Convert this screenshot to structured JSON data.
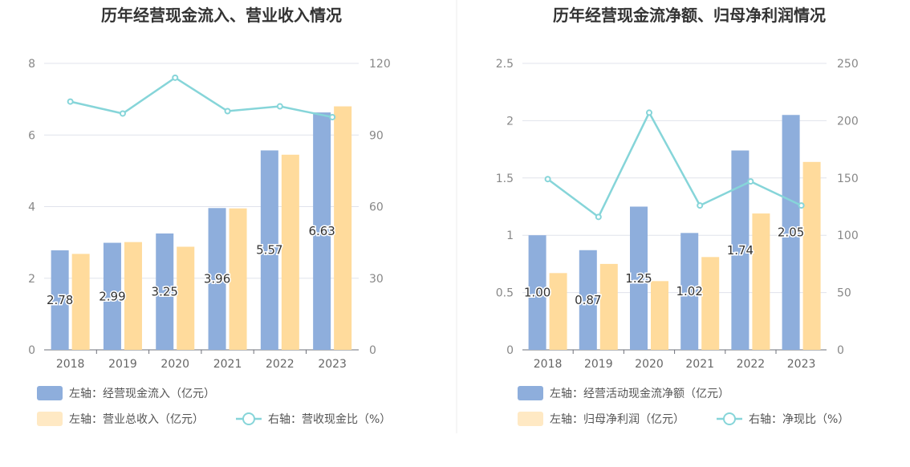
{
  "chart_data": [
    {
      "type": "bar",
      "title": "历年经营现金流入、营业收入情况",
      "categories": [
        "2018",
        "2019",
        "2020",
        "2021",
        "2022",
        "2023"
      ],
      "ylim_left": [
        0,
        8
      ],
      "yticks_left": [
        0,
        2,
        4,
        6,
        8
      ],
      "ylim_right": [
        0,
        120
      ],
      "yticks_right": [
        0,
        30,
        60,
        90,
        120
      ],
      "series": [
        {
          "name": "左轴：经营现金流入（亿元）",
          "type": "bar",
          "axis": "left",
          "color": "#8eaedc",
          "values": [
            2.78,
            2.99,
            3.25,
            3.96,
            5.57,
            6.63
          ],
          "labels": [
            "2.78",
            "2.99",
            "3.25",
            "3.96",
            "5.57",
            "6.63"
          ]
        },
        {
          "name": "左轴：营业总收入（亿元）",
          "type": "bar",
          "axis": "left",
          "color": "#ffdb9c",
          "values": [
            2.68,
            3.01,
            2.88,
            3.95,
            5.45,
            6.8
          ]
        },
        {
          "name": "右轴：营收现金比（%）",
          "type": "line",
          "axis": "right",
          "color": "#86d5d9",
          "values": [
            104,
            99,
            114,
            100,
            102,
            97.5
          ]
        }
      ],
      "grid": true,
      "legend_position": "bottom"
    },
    {
      "type": "bar",
      "title": "历年经营现金流净额、归母净利润情况",
      "categories": [
        "2018",
        "2019",
        "2020",
        "2021",
        "2022",
        "2023"
      ],
      "ylim_left": [
        0,
        2.5
      ],
      "yticks_left": [
        0,
        0.5,
        1,
        1.5,
        2,
        2.5
      ],
      "ylim_right": [
        0,
        250
      ],
      "yticks_right": [
        0,
        50,
        100,
        150,
        200,
        250
      ],
      "series": [
        {
          "name": "左轴：经营活动现金流净额（亿元）",
          "type": "bar",
          "axis": "left",
          "color": "#8eaedc",
          "values": [
            1.0,
            0.87,
            1.25,
            1.02,
            1.74,
            2.05
          ],
          "labels": [
            "1.00",
            "0.87",
            "1.25",
            "1.02",
            "1.74",
            "2.05"
          ]
        },
        {
          "name": "左轴：归母净利润（亿元）",
          "type": "bar",
          "axis": "left",
          "color": "#ffdb9c",
          "values": [
            0.67,
            0.75,
            0.6,
            0.81,
            1.19,
            1.64
          ]
        },
        {
          "name": "右轴：净现比（%）",
          "type": "line",
          "axis": "right",
          "color": "#86d5d9",
          "values": [
            149,
            116,
            207,
            126,
            147,
            126
          ]
        }
      ],
      "grid": true,
      "legend_position": "bottom"
    }
  ]
}
